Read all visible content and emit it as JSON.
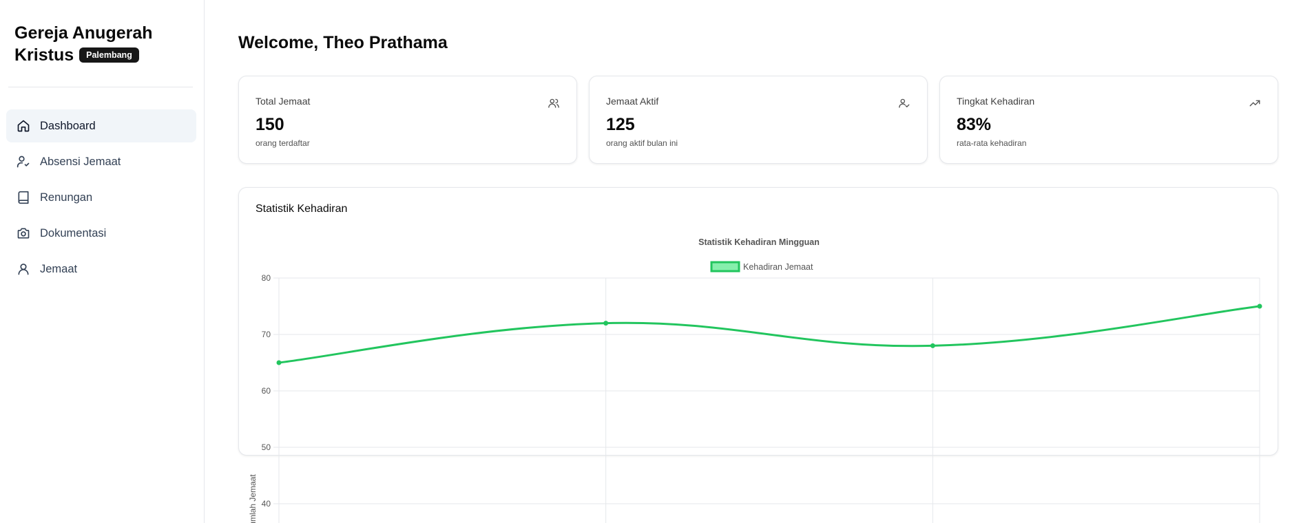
{
  "sidebar": {
    "brand_line1": "Gereja Anugerah",
    "brand_line2": "Kristus",
    "badge": "Palembang",
    "items": [
      {
        "label": "Dashboard",
        "icon": "home-icon",
        "active": true
      },
      {
        "label": "Absensi Jemaat",
        "icon": "user-check-icon",
        "active": false
      },
      {
        "label": "Renungan",
        "icon": "book-icon",
        "active": false
      },
      {
        "label": "Dokumentasi",
        "icon": "camera-icon",
        "active": false
      },
      {
        "label": "Jemaat",
        "icon": "user-icon",
        "active": false
      }
    ]
  },
  "main": {
    "welcome": "Welcome, Theo Prathama",
    "cards": [
      {
        "title": "Total Jemaat",
        "value": "150",
        "sub": "orang terdaftar",
        "icon": "users-icon"
      },
      {
        "title": "Jemaat Aktif",
        "value": "125",
        "sub": "orang aktif bulan ini",
        "icon": "user-check-icon"
      },
      {
        "title": "Tingkat Kehadiran",
        "value": "83%",
        "sub": "rata-rata kehadiran",
        "icon": "trending-up-icon"
      }
    ],
    "chart_card_title": "Statistik Kehadiran"
  },
  "colors": {
    "line": "#22c55e",
    "legend_fill": "#86efac",
    "grid": "#e5e7eb"
  },
  "chart_data": {
    "type": "line",
    "title": "Statistik Kehadiran Mingguan",
    "ylabel": "Jumlah Jemaat",
    "xlabel": "",
    "series": [
      {
        "name": "Kehadiran Jemaat",
        "values": [
          65,
          72,
          68,
          75
        ]
      }
    ],
    "y_ticks": [
      80,
      70,
      60,
      50,
      40
    ],
    "ylim": [
      30,
      80
    ],
    "legend_position": "top-center",
    "grid": true
  }
}
